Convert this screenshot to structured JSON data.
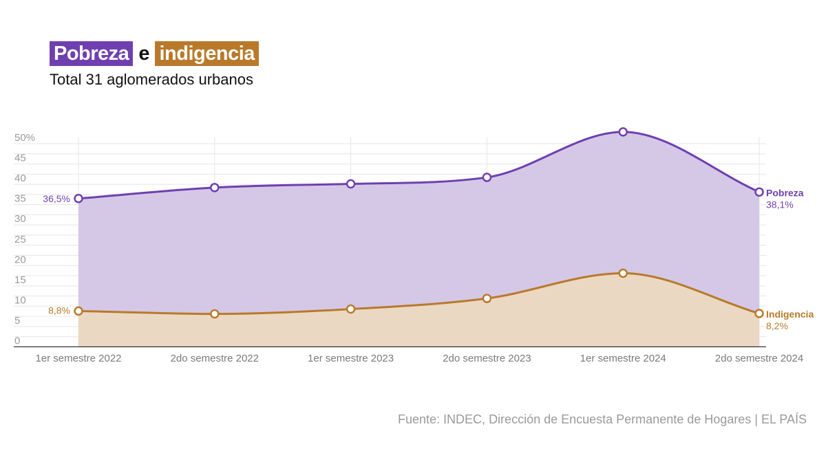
{
  "header": {
    "title_part1": "Pobreza",
    "title_conj": "e",
    "title_part2": "indigencia",
    "subtitle": "Total 31 aglomerados urbanos"
  },
  "source": "Fuente: INDEC, Dirección de Encuesta Permanente de Hogares | EL PAÍS",
  "colors": {
    "pobreza": "#6f3fb0",
    "pobreza_fill": "#d3c5e6",
    "indigencia": "#b87a2a",
    "indigencia_fill": "#ecd9c1"
  },
  "chart_data": {
    "type": "area",
    "categories": [
      "1er semestre 2022",
      "2do semestre 2022",
      "1er semestre 2023",
      "2do semestre 2023",
      "1er semestre 2024",
      "2do semestre 2024"
    ],
    "yticks": [
      "0",
      "5",
      "10",
      "15",
      "20",
      "25",
      "30",
      "35",
      "40",
      "45",
      "50%"
    ],
    "ylim": [
      0,
      50
    ],
    "grid": true,
    "series": [
      {
        "name": "Pobreza",
        "values": [
          36.5,
          39.2,
          40.1,
          41.7,
          52.9,
          38.1
        ],
        "start_label": "36,5%",
        "end_label": "38,1%"
      },
      {
        "name": "Indigencia",
        "values": [
          8.8,
          8.1,
          9.3,
          11.9,
          18.1,
          8.2
        ],
        "start_label": "8,8%",
        "end_label": "8,2%"
      }
    ]
  }
}
